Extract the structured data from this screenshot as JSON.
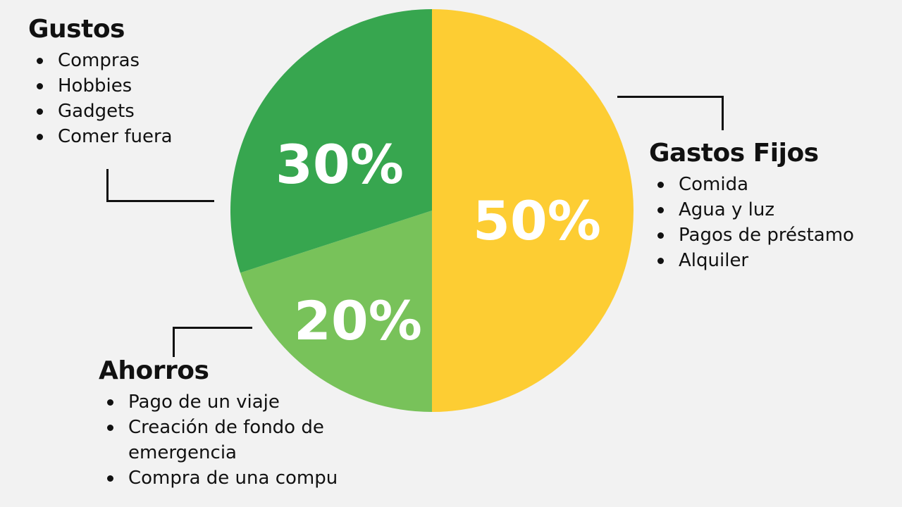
{
  "chart_data": {
    "type": "pie",
    "slices": [
      {
        "name": "Gastos Fijos",
        "value": 50,
        "label": "50%",
        "color": "#fdcd33"
      },
      {
        "name": "Ahorros",
        "value": 20,
        "label": "20%",
        "color": "#78c25a"
      },
      {
        "name": "Gustos",
        "value": 30,
        "label": "30%",
        "color": "#37a64f"
      }
    ]
  },
  "groups": {
    "gustos": {
      "title": "Gustos",
      "items": [
        "Compras",
        "Hobbies",
        "Gadgets",
        "Comer fuera"
      ]
    },
    "gastos_fijos": {
      "title": "Gastos Fijos",
      "items": [
        "Comida",
        "Agua y luz",
        "Pagos de préstamo",
        "Alquiler"
      ]
    },
    "ahorros": {
      "title": "Ahorros",
      "items": [
        "Pago de un viaje",
        "Creación de fondo de emergencia",
        "Compra de una compu"
      ]
    }
  }
}
